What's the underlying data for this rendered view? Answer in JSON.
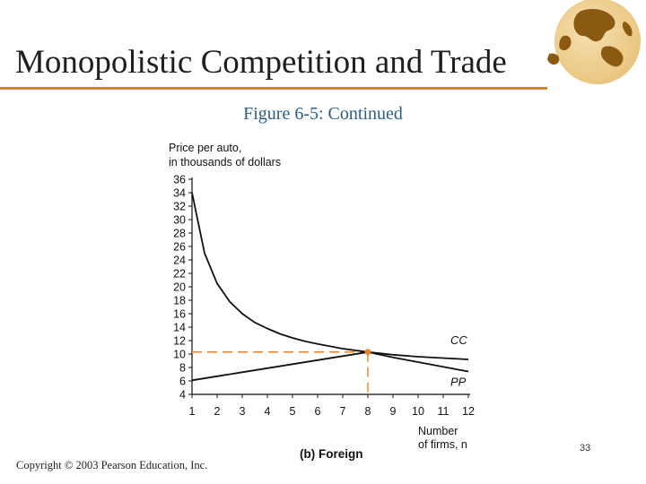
{
  "slide": {
    "title": "Monopolistic Competition and Trade",
    "subtitle": "Figure 6-5: Continued",
    "copyright": "Copyright © 2003 Pearson Education, Inc.",
    "page_number": "33"
  },
  "colors": {
    "accent": "#c98e16",
    "subtitle": "#2b5d8a",
    "dashed": "#e8822a",
    "curve": "#111111",
    "globe": "#8a5a12"
  },
  "icons": {
    "logo": "globe-icon"
  },
  "chart_data": {
    "type": "line",
    "ylabel_lines": [
      "Price per auto,",
      "in thousands of dollars"
    ],
    "xlabel_lines": [
      "Number",
      "of firms, n"
    ],
    "panel_label": "(b) Foreign",
    "x_ticks": [
      1,
      2,
      3,
      4,
      5,
      6,
      7,
      8,
      9,
      10,
      11,
      12
    ],
    "y_ticks": [
      4,
      6,
      8,
      10,
      12,
      14,
      16,
      18,
      20,
      22,
      24,
      26,
      28,
      30,
      32,
      34,
      36
    ],
    "xlim": [
      1,
      12
    ],
    "ylim": [
      4,
      36
    ],
    "grid": false,
    "series": [
      {
        "name": "CC",
        "x": [
          1,
          1.5,
          2,
          2.5,
          3,
          3.5,
          4,
          4.5,
          5,
          5.5,
          6,
          7,
          8,
          9,
          10,
          11,
          12
        ],
        "values": [
          34.0,
          25.0,
          20.5,
          17.8,
          16.0,
          14.7,
          13.8,
          13.0,
          12.4,
          11.9,
          11.5,
          10.8,
          10.3,
          9.9,
          9.6,
          9.4,
          9.2
        ]
      },
      {
        "name": "PP",
        "x": [
          1,
          2,
          3,
          4,
          5,
          6,
          7,
          8,
          9,
          10,
          11,
          12
        ],
        "values": [
          6.1,
          6.7,
          7.3,
          7.9,
          8.5,
          9.1,
          9.7,
          10.3,
          9.5,
          8.8,
          8.1,
          7.4
        ]
      }
    ],
    "equilibrium": {
      "x": 8,
      "y": 10.3
    }
  }
}
